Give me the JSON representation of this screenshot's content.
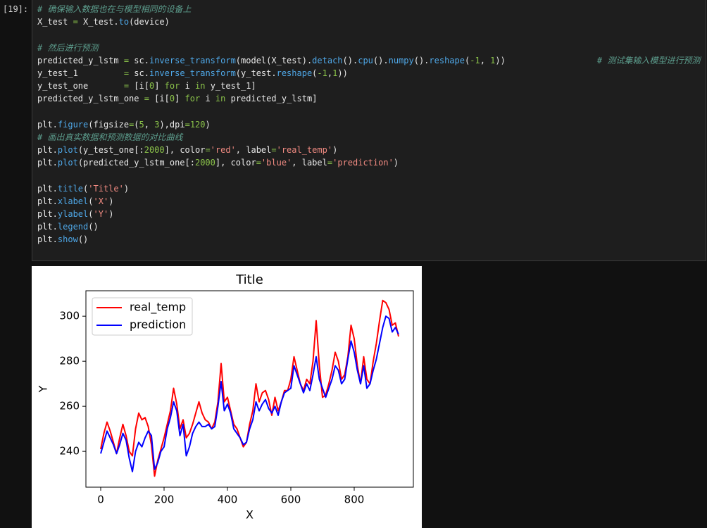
{
  "cell": {
    "prompt": "[19]:",
    "blocks": [
      [
        "# 确保输入数据也在与模型相同的设备上",
        "X_test = X_test.to(device)"
      ],
      [
        "# 然后进行预测",
        "predicted_y_lstm = sc.inverse_transform(model(X_test).detach().cpu().numpy().reshape(-1, 1))                  # 测试集输入模型进行预测",
        "y_test_1         = sc.inverse_transform(y_test.reshape(-1,1))",
        "y_test_one       = [i[0] for i in y_test_1]",
        "predicted_y_lstm_one = [i[0] for i in predicted_y_lstm]"
      ],
      [
        "plt.figure(figsize=(5, 3),dpi=120)",
        "# 画出真实数据和预测数据的对比曲线",
        "plt.plot(y_test_one[:2000], color='red', label='real_temp')",
        "plt.plot(predicted_y_lstm_one[:2000], color='blue', label='prediction')"
      ],
      [
        "plt.title('Title')",
        "plt.xlabel('X')",
        "plt.ylabel('Y')",
        "plt.legend()",
        "plt.show()"
      ]
    ]
  },
  "chart_data": {
    "type": "line",
    "title": "Title",
    "xlabel": "X",
    "ylabel": "Y",
    "x": [
      0,
      10,
      20,
      30,
      40,
      50,
      60,
      70,
      80,
      90,
      100,
      110,
      120,
      130,
      140,
      150,
      160,
      170,
      180,
      190,
      200,
      210,
      220,
      230,
      240,
      250,
      260,
      270,
      280,
      290,
      300,
      310,
      320,
      330,
      340,
      350,
      360,
      370,
      380,
      390,
      400,
      410,
      420,
      430,
      440,
      450,
      460,
      470,
      480,
      490,
      500,
      510,
      520,
      530,
      540,
      550,
      560,
      570,
      580,
      590,
      600,
      610,
      620,
      630,
      640,
      650,
      660,
      670,
      680,
      690,
      700,
      710,
      720,
      730,
      740,
      750,
      760,
      770,
      780,
      790,
      800,
      810,
      820,
      830,
      840,
      850,
      860,
      870,
      880,
      890,
      900,
      910,
      920,
      930,
      940
    ],
    "series": [
      {
        "name": "real_temp",
        "color": "red",
        "values": [
          241,
          248,
          253,
          249,
          244,
          239,
          246,
          252,
          247,
          240,
          238,
          250,
          257,
          254,
          255,
          251,
          243,
          229,
          236,
          241,
          246,
          252,
          258,
          268,
          261,
          250,
          254,
          246,
          248,
          252,
          257,
          262,
          257,
          254,
          253,
          250,
          253,
          262,
          279,
          262,
          264,
          258,
          252,
          250,
          246,
          242,
          244,
          252,
          258,
          270,
          262,
          266,
          267,
          263,
          256,
          264,
          258,
          262,
          267,
          267,
          272,
          282,
          276,
          270,
          267,
          272,
          270,
          280,
          298,
          278,
          264,
          265,
          270,
          276,
          284,
          280,
          272,
          274,
          282,
          296,
          290,
          278,
          270,
          282,
          272,
          270,
          280,
          288,
          298,
          307,
          306,
          303,
          296,
          297,
          291
        ]
      },
      {
        "name": "prediction",
        "color": "blue",
        "values": [
          239,
          244,
          249,
          246,
          243,
          239,
          243,
          248,
          245,
          237,
          231,
          240,
          244,
          242,
          246,
          249,
          247,
          232,
          235,
          240,
          242,
          250,
          255,
          262,
          258,
          247,
          252,
          238,
          242,
          248,
          251,
          253,
          251,
          251,
          252,
          250,
          251,
          260,
          271,
          258,
          261,
          257,
          250,
          248,
          246,
          243,
          244,
          250,
          254,
          262,
          258,
          261,
          263,
          259,
          257,
          260,
          256,
          262,
          266,
          267,
          268,
          278,
          274,
          270,
          266,
          270,
          267,
          274,
          282,
          272,
          268,
          264,
          268,
          272,
          278,
          276,
          270,
          272,
          281,
          289,
          284,
          276,
          270,
          278,
          268,
          270,
          276,
          281,
          288,
          295,
          300,
          299,
          293,
          295,
          292
        ]
      }
    ],
    "xlim": [
      -46.7,
      986.7
    ],
    "ylim": [
      224.1,
      311.3
    ],
    "xticks": [
      0,
      200,
      400,
      600,
      800
    ],
    "yticks": [
      240,
      260,
      280,
      300
    ],
    "legend": "upper left"
  }
}
